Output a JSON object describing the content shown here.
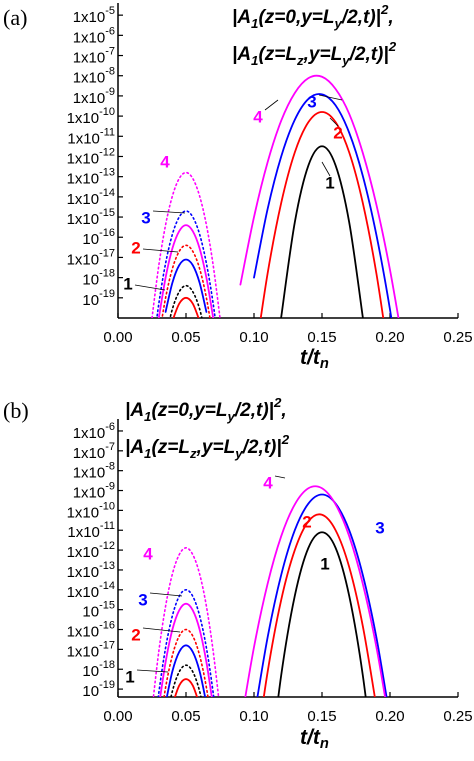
{
  "chart_data": [
    {
      "type": "line",
      "panel_label": "(a)",
      "log_y": true,
      "title": [
        [
          {
            "text": "|A"
          },
          {
            "text": "1",
            "pos": "sub"
          },
          {
            "text": "(z=0,y=L"
          },
          {
            "text": "y",
            "pos": "sub"
          },
          {
            "text": "/2,t)|"
          },
          {
            "text": "2",
            "pos": "sup"
          },
          {
            "text": ","
          }
        ],
        [
          {
            "text": "|A"
          },
          {
            "text": "1",
            "pos": "sub"
          },
          {
            "text": "(z=L"
          },
          {
            "text": "z",
            "pos": "sub"
          },
          {
            "text": ",y=L"
          },
          {
            "text": "y",
            "pos": "sub"
          },
          {
            "text": "/2,t)|"
          },
          {
            "text": "2",
            "pos": "sup"
          }
        ]
      ],
      "x_label": [
        {
          "text": "t/t"
        },
        {
          "text": "n",
          "pos": "sub"
        }
      ],
      "xlim": [
        0,
        0.25
      ],
      "xticks": [
        {
          "value": 0,
          "label": "0.00"
        },
        0.05,
        {
          "value": 0.1,
          "label": "0.10"
        },
        0.15,
        {
          "value": 0.2,
          "label": "0.20"
        },
        0.25
      ],
      "ylim": [
        1e-20,
        4e-05
      ],
      "yticks": [
        {
          "value": 1e-05,
          "label": "1x10",
          "exponent": "-5"
        },
        {
          "value": 1e-06,
          "label": "1x10",
          "exponent": "-6"
        },
        {
          "value": 1e-07,
          "label": "1x10",
          "exponent": "-7"
        },
        {
          "value": 1e-08,
          "label": "1x10",
          "exponent": "-8"
        },
        {
          "value": 1e-09,
          "label": "1x10",
          "exponent": "-9"
        },
        {
          "value": 1e-10,
          "label": "1x10",
          "exponent": "-10"
        },
        {
          "value": 1e-11,
          "label": "1x10",
          "exponent": "-11"
        },
        {
          "value": 1e-12,
          "label": "1x10",
          "exponent": "-12"
        },
        {
          "value": 1e-13,
          "label": "1x10",
          "exponent": "-13"
        },
        {
          "value": 1e-14,
          "label": "1x10",
          "exponent": "-14"
        },
        {
          "value": 1e-15,
          "label": "1x10",
          "exponent": "-15"
        },
        {
          "value": 1e-16,
          "label": "10",
          "exponent": "-16"
        },
        {
          "value": 1e-17,
          "label": "1x10",
          "exponent": "-17"
        },
        {
          "value": 1e-18,
          "label": "10",
          "exponent": "-18"
        },
        {
          "value": 1e-19,
          "label": "10",
          "exponent": "-19"
        }
      ],
      "series": [
        {
          "name": "1",
          "color": "#000000",
          "dash": "solid",
          "x": [
            0.12,
            0.13,
            0.14,
            0.15,
            0.16,
            0.17,
            0.18
          ],
          "values": [
            1.1e-20,
            5.5e-16,
            3.6e-13,
            3.2e-12,
            3.6e-13,
            5.5e-16,
            1.1e-20
          ]
        },
        {
          "name": "2",
          "color": "#ff0000",
          "dash": "solid",
          "x": [
            0.04,
            0.045,
            0.05,
            0.055,
            0.06,
            0.08,
            0.1,
            0.11,
            0.12,
            0.13,
            0.14,
            0.15,
            0.16,
            0.17,
            0.18,
            0.19,
            0.2
          ],
          "values": [
            7.1e-21,
            5.1e-20,
            1e-19,
            5.1e-20,
            7.1e-21,
            null,
            5e-23,
            1.6e-18,
            5e-15,
            1.6e-12,
            5e-11,
            1.6e-10,
            5e-11,
            1.6e-12,
            5e-15,
            1.6e-18,
            5e-23
          ]
        },
        {
          "name": "3",
          "color": "#0000ff",
          "dash": "solid",
          "x": [
            0.035,
            0.04,
            0.045,
            0.05,
            0.055,
            0.06,
            0.065,
            0.08,
            0.1,
            0.11,
            0.12,
            0.13,
            0.14,
            0.15,
            0.16,
            0.17,
            0.18,
            0.19,
            0.2,
            0.21
          ],
          "values": [
            2e-20,
            5.6e-19,
            4.1e-18,
            7.9e-18,
            4.1e-18,
            5.6e-19,
            2e-20,
            null,
            1e-18,
            2.5e-15,
            1e-12,
            6.6e-11,
            7.1e-10,
            1.2e-09,
            3.4e-10,
            1.5e-11,
            1.1e-13,
            1.3e-16,
            2.6e-20,
            8.3e-25
          ]
        },
        {
          "name": "4",
          "color": "#ff00ff",
          "dash": "solid",
          "x": [
            0.03,
            0.035,
            0.04,
            0.045,
            0.05,
            0.055,
            0.06,
            0.065,
            0.07,
            0.08,
            0.09,
            0.1,
            0.11,
            0.12,
            0.13,
            0.14,
            0.15,
            0.16,
            0.17,
            0.18,
            0.19,
            0.2,
            0.21
          ],
          "values": [
            1e-20,
            1e-18,
            2.8e-17,
            2e-16,
            4e-16,
            2e-16,
            2.8e-17,
            1e-18,
            1e-20,
            null,
            4.5e-19,
            1e-15,
            5.2e-13,
            5.9e-11,
            1.4e-09,
            7.6e-09,
            8.9e-09,
            2.2e-09,
            1.3e-10,
            1.5e-12,
            4.1e-15,
            2.4e-18,
            3.2e-22
          ]
        },
        {
          "color": "#000000",
          "dash": "dot",
          "x": [
            0.035,
            0.04,
            0.045,
            0.05,
            0.055,
            0.06,
            0.065
          ],
          "values": [
            1e-21,
            2.8e-20,
            2e-19,
            4e-19,
            2e-19,
            2.8e-20,
            1e-21
          ]
        },
        {
          "color": "#ff0000",
          "dash": "dot",
          "x": [
            0.03,
            0.035,
            0.04,
            0.045,
            0.05,
            0.055,
            0.06,
            0.065,
            0.07
          ],
          "values": [
            1e-21,
            1e-19,
            2.8e-18,
            2e-17,
            4e-17,
            2e-17,
            2.8e-18,
            1e-19,
            1e-21
          ]
        },
        {
          "color": "#0000ff",
          "dash": "dot",
          "x": [
            0.025,
            0.03,
            0.035,
            0.04,
            0.045,
            0.05,
            0.055,
            0.06,
            0.065,
            0.07,
            0.075
          ],
          "values": [
            1.3e-22,
            5e-20,
            5.1e-18,
            1.4e-16,
            1e-15,
            2e-15,
            1e-15,
            1.4e-16,
            5.1e-18,
            5e-20,
            1.3e-22
          ]
        },
        {
          "color": "#ff00ff",
          "dash": "dot",
          "x": [
            0.025,
            0.03,
            0.035,
            0.04,
            0.045,
            0.05,
            0.055,
            0.06,
            0.065,
            0.07,
            0.075
          ],
          "values": [
            1e-20,
            4e-18,
            4.1e-16,
            1.1e-14,
            8.1e-14,
            1.6e-13,
            8.1e-14,
            1.1e-14,
            4.1e-16,
            4e-18,
            1e-20
          ]
        }
      ]
    },
    {
      "type": "line",
      "panel_label": "(b)",
      "log_y": true,
      "title": [
        [
          {
            "text": "|A"
          },
          {
            "text": "1",
            "pos": "sub"
          },
          {
            "text": "(z=0,y=L"
          },
          {
            "text": "y",
            "pos": "sub"
          },
          {
            "text": "/2,t)|"
          },
          {
            "text": "2",
            "pos": "sup"
          },
          {
            "text": ","
          }
        ],
        [
          {
            "text": "|A"
          },
          {
            "text": "1",
            "pos": "sub"
          },
          {
            "text": "(z=L"
          },
          {
            "text": "z",
            "pos": "sub"
          },
          {
            "text": ",y=L"
          },
          {
            "text": "y",
            "pos": "sub"
          },
          {
            "text": "/2,t)|"
          },
          {
            "text": "2",
            "pos": "sup"
          }
        ]
      ],
      "x_label": [
        {
          "text": "t/t"
        },
        {
          "text": "n",
          "pos": "sub"
        }
      ],
      "xlim": [
        0,
        0.25
      ],
      "xticks": [
        {
          "value": 0,
          "label": "0.00"
        },
        0.05,
        {
          "value": 0.1,
          "label": "0.10"
        },
        0.15,
        {
          "value": 0.2,
          "label": "0.20"
        },
        0.25
      ],
      "ylim": [
        4e-20,
        4e-06
      ],
      "yticks": [
        {
          "value": 1e-06,
          "label": "1x10",
          "exponent": "-6"
        },
        {
          "value": 1e-07,
          "label": "1x10",
          "exponent": "-7"
        },
        {
          "value": 1e-08,
          "label": "1x10",
          "exponent": "-8"
        },
        {
          "value": 1e-09,
          "label": "1x10",
          "exponent": "-9"
        },
        {
          "value": 1e-10,
          "label": "1x10",
          "exponent": "-10"
        },
        {
          "value": 1e-11,
          "label": "1x10",
          "exponent": "-11"
        },
        {
          "value": 1e-12,
          "label": "1x10",
          "exponent": "-12"
        },
        {
          "value": 1e-13,
          "label": "1x10",
          "exponent": "-13"
        },
        {
          "value": 1e-14,
          "label": "1x10",
          "exponent": "-14"
        },
        {
          "value": 1e-15,
          "label": "10",
          "exponent": "-15"
        },
        {
          "value": 1e-16,
          "label": "1x10",
          "exponent": "-16"
        },
        {
          "value": 1e-17,
          "label": "1x10",
          "exponent": "-17"
        },
        {
          "value": 1e-18,
          "label": "10",
          "exponent": "-18"
        },
        {
          "value": 1e-19,
          "label": "10",
          "exponent": "-19"
        }
      ],
      "series": [
        {
          "name": "1",
          "color": "#000000",
          "dash": "solid",
          "x": [
            0.11,
            0.12,
            0.13,
            0.14,
            0.15,
            0.16,
            0.17,
            0.18,
            0.19
          ],
          "values": [
            1.3e-24,
            5e-19,
            5e-15,
            1.3e-12,
            7.9e-12,
            1.3e-12,
            5e-15,
            5e-19,
            1.3e-24
          ]
        },
        {
          "name": "2",
          "color": "#ff0000",
          "dash": "solid",
          "x": [
            0.04,
            0.045,
            0.05,
            0.055,
            0.06,
            0.08,
            0.1,
            0.11,
            0.12,
            0.13,
            0.14,
            0.15,
            0.16,
            0.17,
            0.18,
            0.19
          ],
          "values": [
            1.6e-20,
            1.5e-19,
            3.2e-19,
            1.5e-19,
            1.6e-20,
            null,
            1.3e-23,
            7.2e-19,
            3.1e-15,
            1e-12,
            2.8e-11,
            6e-11,
            1e-11,
            1.4e-13,
            1.5e-16,
            1.3e-20
          ]
        },
        {
          "name": "3",
          "color": "#0000ff",
          "dash": "solid",
          "x": [
            0.035,
            0.04,
            0.045,
            0.05,
            0.055,
            0.06,
            0.065,
            0.08,
            0.1,
            0.11,
            0.12,
            0.13,
            0.14,
            0.15,
            0.16,
            0.17,
            0.18,
            0.19,
            0.2
          ],
          "values": [
            1.9e-20,
            7.9e-19,
            7.4e-18,
            1.6e-17,
            7.4e-18,
            7.9e-19,
            1.9e-20,
            null,
            3.5e-21,
            4e-17,
            5.6e-14,
            1e-11,
            2.2e-10,
            6.3e-10,
            2.2e-10,
            1e-11,
            5.6e-14,
            4e-17,
            3.5e-21
          ]
        },
        {
          "name": "4",
          "color": "#ff00ff",
          "dash": "solid",
          "x": [
            0.03,
            0.035,
            0.04,
            0.045,
            0.05,
            0.055,
            0.06,
            0.065,
            0.07,
            0.08,
            0.09,
            0.1,
            0.11,
            0.12,
            0.13,
            0.14,
            0.15,
            0.16,
            0.17,
            0.18,
            0.19,
            0.2
          ],
          "values": [
            1.3e-20,
            2.3e-18,
            1e-16,
            9.3e-16,
            2e-15,
            9.3e-16,
            1e-16,
            2.3e-18,
            1.3e-20,
            null,
            1.3e-21,
            1.3e-17,
            2e-14,
            5e-12,
            2e-10,
            1.3e-09,
            1.3e-09,
            2e-10,
            5e-12,
            2e-14,
            1.3e-17,
            1.3e-21
          ]
        },
        {
          "color": "#000000",
          "dash": "dot",
          "x": [
            0.035,
            0.04,
            0.045,
            0.05,
            0.055,
            0.06,
            0.065
          ],
          "values": [
            1.9e-21,
            7.9e-20,
            7.4e-19,
            1.6e-18,
            7.4e-19,
            7.9e-20,
            1.9e-21
          ]
        },
        {
          "color": "#ff0000",
          "dash": "dot",
          "x": [
            0.03,
            0.035,
            0.04,
            0.045,
            0.05,
            0.055,
            0.06,
            0.065,
            0.07
          ],
          "values": [
            6.3e-22,
            1.2e-19,
            5e-18,
            4.7e-17,
            1e-16,
            4.7e-17,
            5e-18,
            1.2e-19,
            6.3e-22
          ]
        },
        {
          "color": "#0000ff",
          "dash": "dot",
          "x": [
            0.025,
            0.03,
            0.035,
            0.04,
            0.045,
            0.05,
            0.055,
            0.06,
            0.065,
            0.07,
            0.075
          ],
          "values": [
            7.4e-23,
            6.3e-20,
            1.2e-17,
            5e-16,
            4.7e-15,
            1e-14,
            4.7e-15,
            5e-16,
            1.2e-17,
            6.3e-20,
            7.4e-23
          ]
        },
        {
          "color": "#ff00ff",
          "dash": "dot",
          "x": [
            0.025,
            0.03,
            0.035,
            0.04,
            0.045,
            0.05,
            0.055,
            0.06,
            0.065,
            0.07,
            0.075
          ],
          "values": [
            9.3e-21,
            7.9e-18,
            1.5e-15,
            6.3e-14,
            5.9e-13,
            1.3e-12,
            5.9e-13,
            6.3e-14,
            1.5e-15,
            7.9e-18,
            9.3e-21
          ]
        }
      ]
    }
  ]
}
